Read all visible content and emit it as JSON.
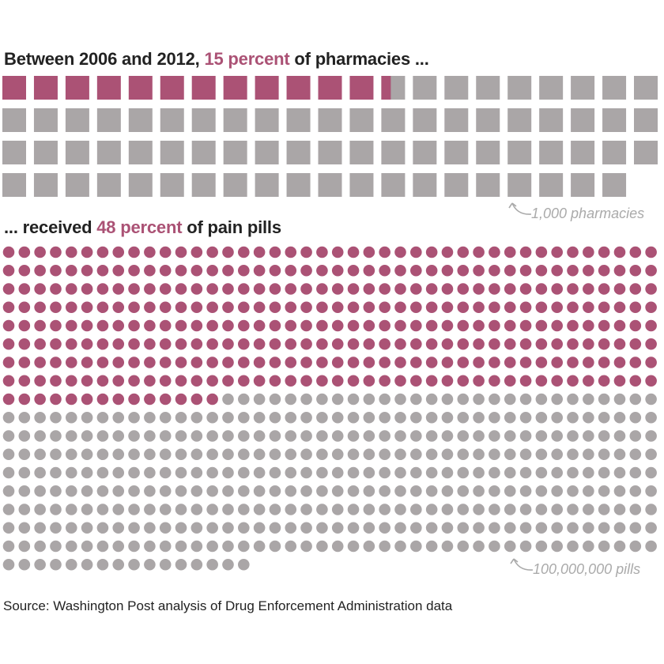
{
  "headline_top": {
    "prefix": "Between 2006 and 2012, ",
    "highlight": "15 percent",
    "suffix": " of pharmacies ..."
  },
  "headline_bottom": {
    "prefix": "... received ",
    "highlight": "48 percent",
    "suffix": " of pain pills"
  },
  "source": "Source: Washington Post analysis of Drug Enforcement Administration data",
  "colors": {
    "highlight": "#ab5275",
    "rest": "#aaa6a7"
  },
  "chart_data": [
    {
      "type": "waffle",
      "unit_label": "1,000 pharmacies",
      "unit_shape": "square",
      "total_units": 83,
      "highlighted_units": 12.4,
      "highlighted_percent": 15,
      "columns": 21
    },
    {
      "type": "waffle",
      "unit_label": "100,000,000 pills",
      "unit_shape": "circle",
      "total_units": 730,
      "highlighted_units": 350,
      "highlighted_percent": 48,
      "columns": 42
    }
  ]
}
